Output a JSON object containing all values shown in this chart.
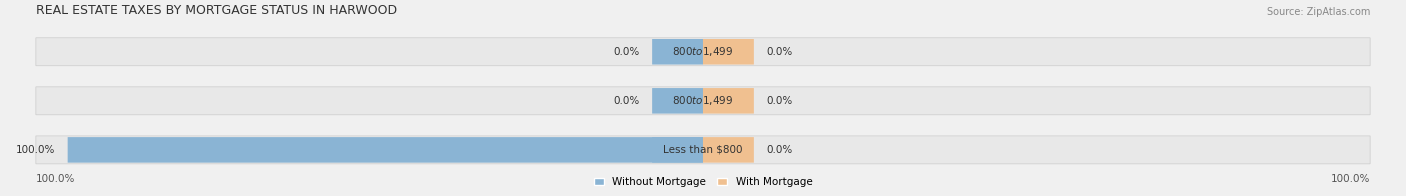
{
  "title": "REAL ESTATE TAXES BY MORTGAGE STATUS IN HARWOOD",
  "source": "Source: ZipAtlas.com",
  "categories": [
    "Less than $800",
    "$800 to $1,499",
    "$800 to $1,499"
  ],
  "without_mortgage": [
    100.0,
    0.0,
    0.0
  ],
  "with_mortgage": [
    0.0,
    0.0,
    0.0
  ],
  "color_without": "#8ab4d4",
  "color_with": "#f0c090",
  "bar_height": 0.55,
  "figsize": [
    14.06,
    1.96
  ],
  "dpi": 100,
  "bg_color": "#f0f0f0",
  "bar_bg_color": "#e8e8e8",
  "legend_label_without": "Without Mortgage",
  "legend_label_with": "With Mortgage",
  "x_left_label": "100.0%",
  "x_right_label": "100.0%",
  "title_fontsize": 9,
  "label_fontsize": 7.5,
  "axis_label_fontsize": 7.5
}
